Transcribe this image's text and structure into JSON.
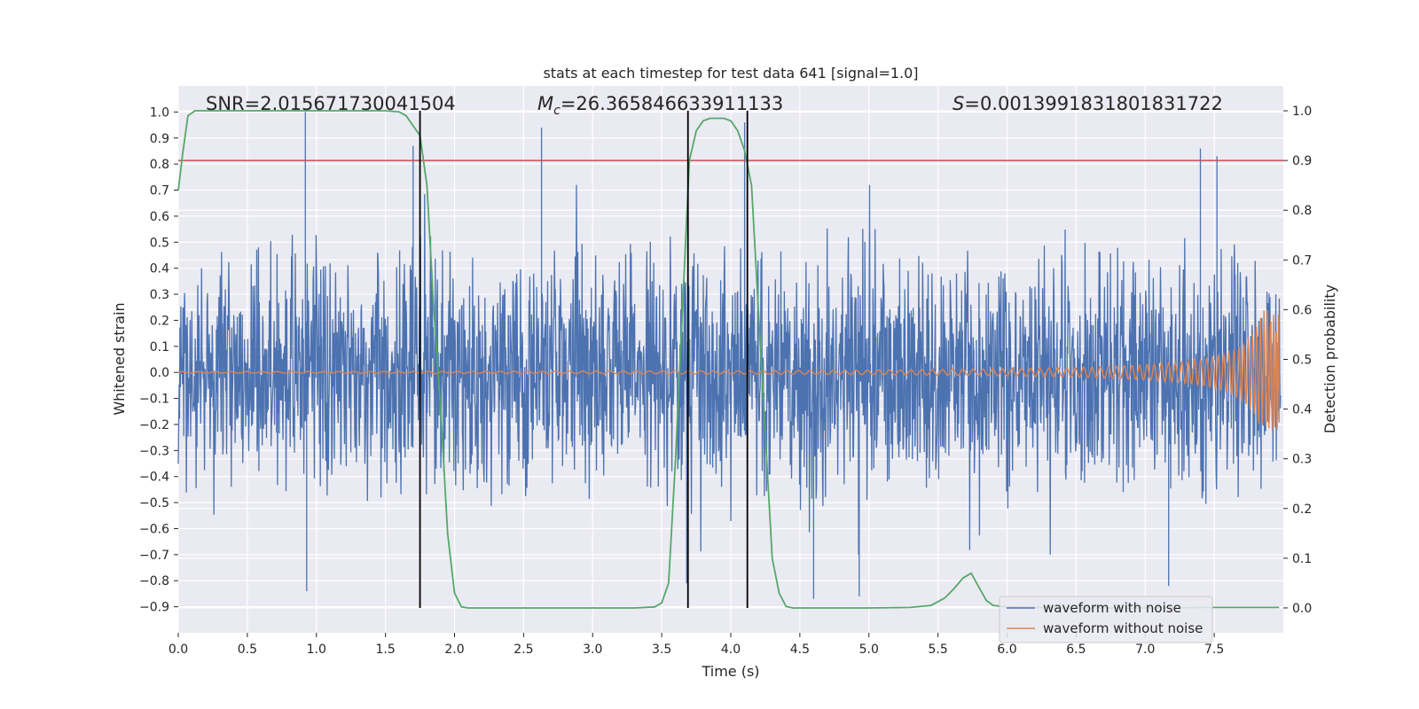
{
  "chart_data": {
    "type": "line",
    "title": "stats at each timestep for test data 641 [signal=1.0]",
    "xlabel": "Time (s)",
    "ylabel_left": "Whitened strain",
    "ylabel_right": "Detection probability",
    "xlim": [
      0.0,
      8.0
    ],
    "ylim_left": [
      -1.0,
      1.1
    ],
    "ylim_right": [
      -0.05,
      1.05
    ],
    "x_ticks": [
      "0.0",
      "0.5",
      "1.0",
      "1.5",
      "2.0",
      "2.5",
      "3.0",
      "3.5",
      "4.0",
      "4.5",
      "5.0",
      "5.5",
      "6.0",
      "6.5",
      "7.0",
      "7.5"
    ],
    "y_ticks_left": [
      "−0.9",
      "−0.8",
      "−0.7",
      "−0.6",
      "−0.5",
      "−0.4",
      "−0.3",
      "−0.2",
      "−0.1",
      "0.0",
      "0.1",
      "0.2",
      "0.3",
      "0.4",
      "0.5",
      "0.6",
      "0.7",
      "0.8",
      "0.9",
      "1.0"
    ],
    "y_ticks_right": [
      "0.0",
      "0.1",
      "0.2",
      "0.3",
      "0.4",
      "0.5",
      "0.6",
      "0.7",
      "0.8",
      "0.9",
      "1.0"
    ],
    "grid": true,
    "legend_placement": "lower-right",
    "annotations": {
      "snr": "SNR=2.015671730041504",
      "mc_symbol": "M",
      "mc_sub": "c",
      "mc_value": "=26.365846633911133",
      "s_symbol": "S",
      "s_value": "=0.0013991831801831722"
    },
    "threshold": 0.9,
    "vertical_lines": [
      1.75,
      3.69,
      4.12
    ],
    "series": [
      {
        "name": "waveform with noise",
        "color": "#4c72b0",
        "axis": "left",
        "envelope_description": "dense noisy signal",
        "typical_range": [
          -0.55,
          0.48
        ],
        "peaks": [
          {
            "x": 0.92,
            "y": 1.0
          },
          {
            "x": 1.7,
            "y": 0.87
          },
          {
            "x": 2.63,
            "y": 0.94
          },
          {
            "x": 4.1,
            "y": 0.96
          },
          {
            "x": 7.4,
            "y": 0.86
          },
          {
            "x": 7.52,
            "y": 0.83
          },
          {
            "x": 0.93,
            "y": -0.84
          },
          {
            "x": 4.6,
            "y": -0.87
          },
          {
            "x": 4.93,
            "y": -0.86
          },
          {
            "x": 7.17,
            "y": -0.82
          },
          {
            "x": 3.68,
            "y": -0.81
          }
        ]
      },
      {
        "name": "waveform without noise",
        "color": "#dd8452",
        "axis": "left",
        "chirp_start_amp": 0.003,
        "chirp_end_amp": 0.24,
        "end_time": 7.97
      },
      {
        "name": "",
        "color": "#55a868",
        "axis": "right",
        "x": [
          0.0,
          0.03,
          0.07,
          0.12,
          0.2,
          0.4,
          0.8,
          1.2,
          1.5,
          1.6,
          1.65,
          1.7,
          1.75,
          1.8,
          1.85,
          1.9,
          1.95,
          2.0,
          2.05,
          2.1,
          2.3,
          2.7,
          3.0,
          3.3,
          3.45,
          3.5,
          3.55,
          3.6,
          3.65,
          3.7,
          3.75,
          3.8,
          3.85,
          3.9,
          3.95,
          4.0,
          4.05,
          4.1,
          4.15,
          4.2,
          4.25,
          4.3,
          4.35,
          4.4,
          4.45,
          4.6,
          5.0,
          5.3,
          5.45,
          5.55,
          5.62,
          5.68,
          5.74,
          5.8,
          5.85,
          5.9,
          6.0,
          6.5,
          7.0,
          7.5,
          7.97
        ],
        "y": [
          0.84,
          0.91,
          0.99,
          1.0,
          1.0,
          1.0,
          1.0,
          1.0,
          1.0,
          0.998,
          0.99,
          0.97,
          0.95,
          0.85,
          0.6,
          0.4,
          0.15,
          0.03,
          0.002,
          0.0,
          0.0,
          0.0,
          0.0,
          0.0,
          0.002,
          0.01,
          0.05,
          0.3,
          0.6,
          0.9,
          0.96,
          0.98,
          0.985,
          0.985,
          0.985,
          0.98,
          0.96,
          0.92,
          0.85,
          0.6,
          0.35,
          0.1,
          0.03,
          0.003,
          0.0,
          0.0,
          0.0,
          0.001,
          0.005,
          0.02,
          0.04,
          0.06,
          0.07,
          0.04,
          0.015,
          0.005,
          0.002,
          0.0,
          0.0,
          0.001,
          0.001
        ]
      }
    ]
  }
}
